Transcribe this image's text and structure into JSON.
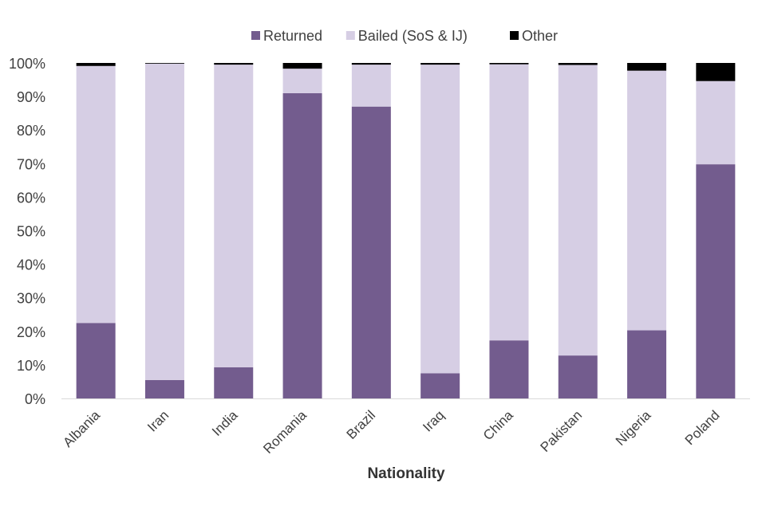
{
  "chart_data": {
    "type": "bar",
    "stacked": true,
    "title": "",
    "xlabel": "Nationality",
    "ylabel": "",
    "ylim": [
      0,
      100
    ],
    "yticks": [
      "0%",
      "10%",
      "20%",
      "30%",
      "40%",
      "50%",
      "60%",
      "70%",
      "80%",
      "90%",
      "100%"
    ],
    "grid": false,
    "legend_position": "top-center",
    "categories": [
      "Albania",
      "Iran",
      "India",
      "Romania",
      "Brazil",
      "Iraq",
      "China",
      "Pakistan",
      "Nigeria",
      "Poland"
    ],
    "series": [
      {
        "name": "Returned",
        "color": "#735c8e",
        "values": [
          22.5,
          5.5,
          9.3,
          91.0,
          87.0,
          7.5,
          17.3,
          12.8,
          20.3,
          69.8
        ]
      },
      {
        "name": "Bailed (SoS & IJ)",
        "color": "#d6cee4",
        "values": [
          76.6,
          94.3,
          90.2,
          7.3,
          12.5,
          92.0,
          82.3,
          86.6,
          77.4,
          24.8
        ]
      },
      {
        "name": "Other",
        "color": "#000000",
        "values": [
          0.9,
          0.2,
          0.5,
          1.7,
          0.5,
          0.5,
          0.4,
          0.6,
          2.3,
          5.4
        ]
      }
    ]
  }
}
